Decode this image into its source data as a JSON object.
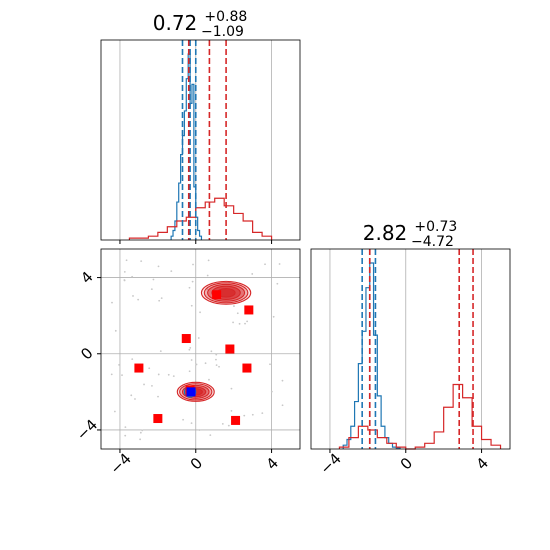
{
  "figure": {
    "type": "corner-plot"
  },
  "colors": {
    "series_a": "#1f77b4",
    "series_b": "#d62728",
    "points": "#ff0000",
    "point_center": "#0000ff",
    "grid": "#b0b0b0",
    "scatter": "#c8c8c8"
  },
  "chart_data": [
    {
      "type": "histogram",
      "panel": "x-marginal",
      "title": {
        "value": "0.72",
        "plus": "+0.88",
        "minus": "−1.09"
      },
      "xlim": [
        -5,
        5.5
      ],
      "x_ticks": [
        -4,
        0,
        4
      ],
      "x_tick_labels_visible": false,
      "grid": true,
      "series": [
        {
          "color": "#1f77b4",
          "bins": [
            -1.3,
            -1.2,
            -1.1,
            -1.0,
            -0.9,
            -0.8,
            -0.7,
            -0.6,
            -0.5,
            -0.4,
            -0.3,
            -0.2,
            -0.1,
            0.0,
            0.1,
            0.2,
            0.3
          ],
          "counts": [
            0.02,
            0.05,
            0.1,
            0.2,
            0.3,
            0.45,
            0.55,
            0.68,
            0.85,
            0.98,
            0.72,
            0.82,
            0.28,
            0.12,
            0.05,
            0.02
          ],
          "quantiles": [
            -0.7,
            -0.3,
            0.0
          ]
        },
        {
          "color": "#d62728",
          "bins": [
            -3.5,
            -3.0,
            -2.5,
            -2.0,
            -1.5,
            -1.0,
            -0.5,
            0.0,
            0.5,
            1.0,
            1.5,
            2.0,
            2.5,
            3.0,
            3.5,
            4.0
          ],
          "counts": [
            0.01,
            0.01,
            0.02,
            0.04,
            0.07,
            0.1,
            0.12,
            0.17,
            0.2,
            0.22,
            0.18,
            0.14,
            0.1,
            0.04,
            0.02
          ],
          "quantiles": [
            -0.37,
            0.72,
            1.6
          ]
        }
      ]
    },
    {
      "type": "histogram",
      "panel": "y-marginal",
      "title": {
        "value": "2.82",
        "plus": "+0.73",
        "minus": "−4.72"
      },
      "xlim": [
        -5,
        5.5
      ],
      "x_ticks": [
        -4,
        0,
        4
      ],
      "x_tick_labels": [
        "−4",
        "0",
        "4"
      ],
      "grid": true,
      "series": [
        {
          "color": "#1f77b4",
          "bins": [
            -3.3,
            -3.1,
            -2.9,
            -2.7,
            -2.5,
            -2.3,
            -2.1,
            -1.9,
            -1.7,
            -1.5,
            -1.3,
            -1.1,
            -0.9,
            -0.7,
            -0.5,
            -0.3
          ],
          "counts": [
            0.02,
            0.05,
            0.12,
            0.25,
            0.45,
            0.62,
            0.85,
            0.98,
            0.6,
            0.28,
            0.12,
            0.06,
            0.03,
            0.01,
            0.005
          ],
          "quantiles": [
            -2.3,
            -1.9,
            -1.6
          ]
        },
        {
          "color": "#d62728",
          "bins": [
            -3.5,
            -3.0,
            -2.5,
            -2.0,
            -1.5,
            -1.0,
            -0.5,
            0.0,
            0.5,
            1.0,
            1.5,
            2.0,
            2.5,
            3.0,
            3.5,
            4.0,
            4.5,
            5.0
          ],
          "counts": [
            0.01,
            0.06,
            0.12,
            0.1,
            0.06,
            0.03,
            0.01,
            0.0,
            0.01,
            0.03,
            0.09,
            0.22,
            0.34,
            0.27,
            0.12,
            0.05,
            0.02
          ],
          "quantiles": [
            -1.9,
            2.82,
            3.55
          ]
        }
      ]
    },
    {
      "type": "scatter",
      "panel": "joint",
      "xlim": [
        -5,
        5.5
      ],
      "ylim": [
        -5,
        5.5
      ],
      "x_ticks": [
        -4,
        0,
        4
      ],
      "y_ticks": [
        -4,
        0,
        4
      ],
      "x_tick_labels": [
        "−4",
        "0",
        "4"
      ],
      "y_tick_labels": [
        "−4",
        "0",
        "4"
      ],
      "grid": true,
      "contours": [
        {
          "color": "#d62728",
          "center": [
            0.0,
            -2.0
          ],
          "radii": [
            [
              1.95,
              1.0
            ],
            [
              1.7,
              0.85
            ],
            [
              1.4,
              0.68
            ],
            [
              1.05,
              0.5
            ],
            [
              0.7,
              0.33
            ]
          ]
        },
        {
          "color": "#d62728",
          "center": [
            1.6,
            3.2
          ],
          "radii": [
            [
              2.6,
              1.2
            ],
            [
              2.3,
              1.05
            ],
            [
              1.95,
              0.88
            ],
            [
              1.5,
              0.7
            ],
            [
              0.95,
              0.45
            ]
          ]
        },
        {
          "color": "#1f77b4",
          "center": [
            -0.3,
            -2.0
          ],
          "radii": [
            [
              0.6,
              0.55
            ],
            [
              0.45,
              0.42
            ],
            [
              0.3,
              0.28
            ],
            [
              0.16,
              0.15
            ]
          ]
        }
      ],
      "markers": [
        {
          "x": 1.1,
          "y": 3.1
        },
        {
          "x": 2.8,
          "y": 2.3
        },
        {
          "x": -0.5,
          "y": 0.8
        },
        {
          "x": 1.8,
          "y": 0.25
        },
        {
          "x": -3.0,
          "y": -0.75
        },
        {
          "x": 2.7,
          "y": -0.75
        },
        {
          "x": -2.0,
          "y": -3.4
        },
        {
          "x": 2.1,
          "y": -3.5
        },
        {
          "x": -0.3,
          "y": -1.9
        },
        {
          "x": -0.3,
          "y": -2.0
        }
      ],
      "center_marker": {
        "x": -0.25,
        "y": -2.0
      }
    }
  ]
}
